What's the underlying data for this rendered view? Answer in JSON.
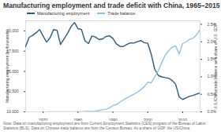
{
  "chart_data": {
    "type": "line",
    "title": "Manufacturing employment and trade deficit with China, 1965–2015",
    "note": "Note: Data on manufacturing employment are from Current Employment Statistics (CES) program of the Bureau of Labor Statistics (BLS). Data on Chinese trade balance are from the Census Bureau. As a share of GDP, the US/China",
    "ylabel": "Manufacturing employment (in thousands)",
    "y2label": "U.S./China trade balance as a share of U.S. GDP",
    "x": [
      1965,
      1966,
      1967,
      1968,
      1969,
      1970,
      1971,
      1972,
      1973,
      1974,
      1975,
      1976,
      1977,
      1978,
      1979,
      1980,
      1981,
      1982,
      1983,
      1984,
      1985,
      1986,
      1987,
      1988,
      1989,
      1990,
      1991,
      1992,
      1993,
      1994,
      1995,
      1996,
      1997,
      1998,
      1999,
      2000,
      2001,
      2002,
      2003,
      2004,
      2005,
      2006,
      2007,
      2008,
      2009,
      2010,
      2011,
      2012,
      2013,
      2014,
      2015
    ],
    "xlim": [
      1965,
      2015
    ],
    "xticks": [
      1970,
      1980,
      1990,
      2000,
      2010
    ],
    "ylim": [
      10000,
      21250
    ],
    "yticks": [
      {
        "value": 10000,
        "label": "10,000"
      },
      {
        "value": 12500,
        "label": "12,500"
      },
      {
        "value": 15000,
        "label": "15,000"
      },
      {
        "value": 17500,
        "label": "17,500"
      },
      {
        "value": 20000,
        "label": "20,000"
      }
    ],
    "y2lim": [
      0,
      2.6
    ],
    "y2ticks": [
      {
        "value": 0,
        "label": "0.0%"
      },
      {
        "value": 0.5,
        "label": "0.5%"
      },
      {
        "value": 1,
        "label": "1.0%"
      },
      {
        "value": 1.5,
        "label": "1.5%"
      },
      {
        "value": 2,
        "label": "2.0%"
      },
      {
        "value": 2.5,
        "label": "2.5%"
      }
    ],
    "grid": false,
    "legend": "top",
    "series": [
      {
        "name": "Manufacturing employment",
        "color": "#2b5a7e",
        "values": [
          18062,
          19214,
          19447,
          19781,
          20167,
          19367,
          18623,
          19151,
          20154,
          20077,
          18323,
          18997,
          19682,
          20505,
          21040,
          20285,
          20170,
          18780,
          18432,
          19372,
          19248,
          18947,
          18999,
          19314,
          19391,
          19076,
          18406,
          18104,
          18075,
          18321,
          18524,
          18495,
          18675,
          18805,
          18552,
          18469,
          17121,
          15259,
          14509,
          14315,
          14227,
          14155,
          13879,
          13406,
          11847,
          11528,
          11726,
          11927,
          12020,
          12188,
          12336
        ]
      },
      {
        "name": "Trade balance",
        "color": "#8ec3e6",
        "axis": "y2",
        "values": [
          null,
          null,
          null,
          null,
          null,
          null,
          0,
          0,
          0,
          0,
          0,
          0,
          0,
          0,
          0,
          0,
          0,
          0.01,
          0.01,
          0.01,
          0.02,
          0.04,
          0.06,
          0.07,
          0.11,
          0.18,
          0.21,
          0.28,
          0.34,
          0.4,
          0.45,
          0.5,
          0.56,
          0.63,
          0.72,
          0.85,
          0.83,
          1.0,
          1.17,
          1.4,
          1.62,
          1.75,
          1.85,
          1.88,
          1.65,
          1.95,
          2.0,
          2.07,
          2.1,
          2.2,
          2.35
        ]
      }
    ]
  }
}
